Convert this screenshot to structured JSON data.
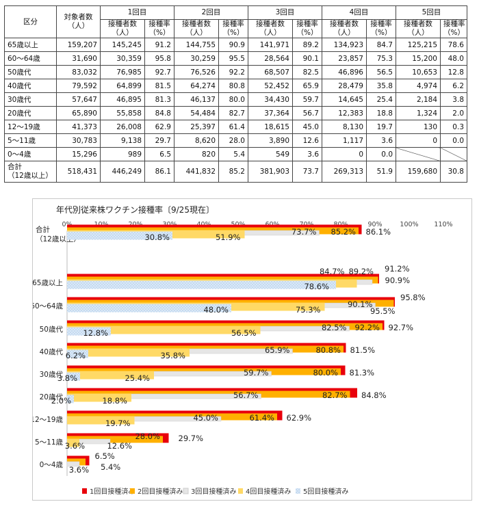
{
  "table": {
    "headers": {
      "category": "区分",
      "target": [
        "対象者数",
        "（人）"
      ],
      "doses": [
        "1回目",
        "2回目",
        "3回目",
        "4回目",
        "5回目"
      ],
      "count": [
        "接種者数",
        "（人）"
      ],
      "rate": [
        "接種率",
        "（%）"
      ]
    },
    "rows": [
      {
        "label": "65歳以上",
        "target": "159,207",
        "cells": [
          "145,245",
          "91.2",
          "144,755",
          "90.9",
          "141,971",
          "89.2",
          "134,923",
          "84.7",
          "125,215",
          "78.6"
        ]
      },
      {
        "label": "60～64歳",
        "target": "31,690",
        "cells": [
          "30,359",
          "95.8",
          "30,259",
          "95.5",
          "28,564",
          "90.1",
          "23,857",
          "75.3",
          "15,200",
          "48.0"
        ]
      },
      {
        "label": "50歳代",
        "target": "83,032",
        "cells": [
          "76,985",
          "92.7",
          "76,526",
          "92.2",
          "68,507",
          "82.5",
          "46,896",
          "56.5",
          "10,653",
          "12.8"
        ]
      },
      {
        "label": "40歳代",
        "target": "79,592",
        "cells": [
          "64,899",
          "81.5",
          "64,274",
          "80.8",
          "52,452",
          "65.9",
          "28,479",
          "35.8",
          "4,974",
          "6.2"
        ]
      },
      {
        "label": "30歳代",
        "target": "57,647",
        "cells": [
          "46,895",
          "81.3",
          "46,137",
          "80.0",
          "34,430",
          "59.7",
          "14,645",
          "25.4",
          "2,184",
          "3.8"
        ]
      },
      {
        "label": "20歳代",
        "target": "65,890",
        "cells": [
          "55,858",
          "84.8",
          "54,484",
          "82.7",
          "37,364",
          "56.7",
          "12,383",
          "18.8",
          "1,324",
          "2.0"
        ]
      },
      {
        "label": "12～19歳",
        "target": "41,373",
        "cells": [
          "26,008",
          "62.9",
          "25,397",
          "61.4",
          "18,615",
          "45.0",
          "8,130",
          "19.7",
          "130",
          "0.3"
        ]
      },
      {
        "label": "5～11歳",
        "target": "30,783",
        "cells": [
          "9,138",
          "29.7",
          "8,620",
          "28.0",
          "3,890",
          "12.6",
          "1,117",
          "3.6",
          "0",
          "0.0"
        ]
      },
      {
        "label": "0～4歳",
        "target": "15,296",
        "cells": [
          "989",
          "6.5",
          "820",
          "5.4",
          "549",
          "3.6",
          "0",
          "0.0",
          "",
          ""
        ]
      }
    ],
    "total": {
      "label": [
        "合計",
        "（12歳以上）"
      ],
      "target": "518,431",
      "cells": [
        "446,249",
        "86.1",
        "441,832",
        "85.2",
        "381,903",
        "73.7",
        "269,313",
        "51.9",
        "159,680",
        "30.8"
      ]
    }
  },
  "chart_data": {
    "type": "bar",
    "orientation": "horizontal",
    "title": "年代別従来株ワクチン接種率〔9/25現在〕",
    "xlim": [
      0,
      110
    ],
    "x_ticks": [
      "0%",
      "10%",
      "20%",
      "30%",
      "40%",
      "50%",
      "60%",
      "70%",
      "80%",
      "90%",
      "100%",
      "110%"
    ],
    "grid": false,
    "legend_position": "bottom",
    "categories": [
      [
        "合計",
        "（12歳以上）"
      ],
      [
        "65歳以上"
      ],
      [
        "60～64歳"
      ],
      [
        "50歳代"
      ],
      [
        "40歳代"
      ],
      [
        "30歳代"
      ],
      [
        "20歳代"
      ],
      [
        "12～19歳"
      ],
      [
        "5～11歳"
      ],
      [
        "0～4歳"
      ]
    ],
    "series": [
      {
        "name": "1回目接種済み",
        "color": "#e8000b",
        "values": [
          86.1,
          91.2,
          95.8,
          92.7,
          81.5,
          81.3,
          84.8,
          62.9,
          29.7,
          6.5
        ]
      },
      {
        "name": "2回目接種済み",
        "color": "#ffb000",
        "values": [
          85.2,
          90.9,
          95.5,
          92.2,
          80.8,
          80.0,
          82.7,
          61.4,
          28.0,
          5.4
        ]
      },
      {
        "name": "3回目接種済み",
        "color": "#e6e6e6",
        "values": [
          73.7,
          89.2,
          90.1,
          82.5,
          65.9,
          59.7,
          56.7,
          45.0,
          12.6,
          3.6
        ]
      },
      {
        "name": "4回目接種済み",
        "color": "#ffd966",
        "values": [
          51.9,
          84.7,
          75.3,
          56.5,
          35.8,
          25.4,
          18.8,
          19.7,
          3.6,
          0.0
        ]
      },
      {
        "name": "5回目接種済み",
        "color": "#cfe2f3",
        "values": [
          30.8,
          78.6,
          48.0,
          12.8,
          6.2,
          3.8,
          2.0,
          null,
          null,
          null
        ]
      }
    ],
    "data_labels": [
      [
        "86.1%",
        "85.2%",
        "73.7%",
        "51.9%",
        "30.8%"
      ],
      [
        "91.2%",
        "90.9%",
        "89.2%",
        "84.7%",
        "78.6%"
      ],
      [
        "95.8%",
        "95.5%",
        "90.1%",
        "75.3%",
        "48.0%"
      ],
      [
        "92.7%",
        "92.2%",
        "82.5%",
        "56.5%",
        "12.8%"
      ],
      [
        "81.5%",
        "80.8%",
        "65.9%",
        "35.8%",
        "6.2%"
      ],
      [
        "81.3%",
        "80.0%",
        "59.7%",
        "25.4%",
        "3.8%"
      ],
      [
        "84.8%",
        "82.7%",
        "56.7%",
        "18.8%",
        "2.0%"
      ],
      [
        "62.9%",
        "61.4%",
        "45.0%",
        "19.7%",
        ""
      ],
      [
        "29.7%",
        "28.0%",
        "12.6%",
        "3.6%",
        ""
      ],
      [
        "6.5%",
        "5.4%",
        "3.6%",
        "",
        ""
      ]
    ]
  }
}
